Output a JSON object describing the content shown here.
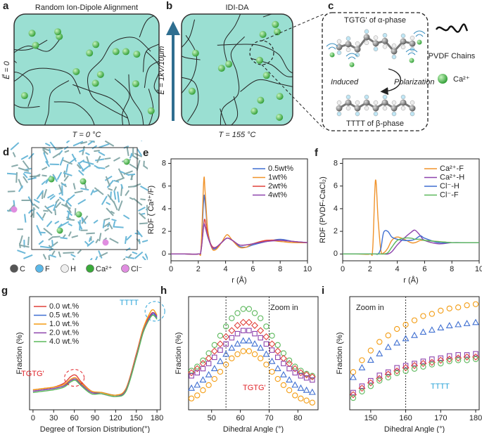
{
  "panels": {
    "a": {
      "label": "a",
      "title": "Random Ion-Dipole Alignment",
      "temperature": "T = 0 °C",
      "field": "E⃗ = 0"
    },
    "b": {
      "label": "b",
      "title": "IDI-DA",
      "temperature": "T = 155 °C",
      "field": "E⃗ = 1kV/10μm"
    },
    "c": {
      "label": "c",
      "top": "TGTG' of α-phase",
      "induced": "Induced",
      "polarization": "Polarization",
      "bottom": "TTTT of β-phase",
      "chains": "PVDF Chains",
      "ion": "Ca²⁺"
    },
    "d": {
      "label": "d",
      "legend": [
        "C",
        "F",
        "H",
        "Ca²⁺",
        "Cl⁻"
      ]
    }
  },
  "chart_data": [
    {
      "type": "line",
      "panel": "e",
      "xlabel": "r (Å)",
      "ylabel": "RDF ( Ca²⁺/F)",
      "legend": "upper right",
      "x": [
        0,
        1,
        2,
        2.2,
        2.4,
        2.5,
        2.7,
        3,
        3.3,
        3.7,
        4.1,
        4.5,
        5,
        5.5,
        6,
        7,
        8,
        9,
        10
      ],
      "series": [
        {
          "name": "0.5wt%",
          "color": "#3f6fd1",
          "values": [
            0,
            0,
            0,
            0.4,
            4.9,
            4.5,
            2,
            0.6,
            0.5,
            1.0,
            1.4,
            1.2,
            0.7,
            0.6,
            0.8,
            1.1,
            1.3,
            1.1,
            1.0
          ]
        },
        {
          "name": "1wt%",
          "color": "#f0932b",
          "values": [
            0,
            0,
            0,
            0.5,
            6.5,
            5.5,
            2,
            0.5,
            0.4,
            1.0,
            1.7,
            1.2,
            0.6,
            0.6,
            0.9,
            1.2,
            1.1,
            1.0,
            1.0
          ]
        },
        {
          "name": "2wt%",
          "color": "#e0413a",
          "values": [
            0,
            0,
            0,
            0.3,
            2.6,
            3.0,
            1.6,
            0.7,
            0.6,
            1.0,
            1.4,
            1.2,
            0.8,
            0.8,
            0.9,
            1.2,
            1.2,
            1.1,
            1.0
          ]
        },
        {
          "name": "4wt%",
          "color": "#8e44ad",
          "values": [
            0,
            0,
            0,
            0.3,
            2.5,
            2.4,
            1.5,
            0.6,
            0.6,
            1.0,
            1.4,
            1.2,
            0.8,
            0.8,
            0.9,
            1.1,
            1.2,
            1.1,
            1.0
          ]
        }
      ],
      "xlim": [
        0,
        10
      ],
      "xticks": [
        0,
        2,
        4,
        6,
        8,
        10
      ],
      "ylim": [
        -0.6,
        8.4
      ],
      "yticks": [
        0,
        2,
        4,
        6,
        8
      ]
    },
    {
      "type": "line",
      "panel": "f",
      "xlabel": "r (Å)",
      "ylabel": "RDF (PVDF-CaCl₂)",
      "legend": "upper right",
      "x": [
        0,
        1,
        2,
        2.2,
        2.4,
        2.6,
        2.8,
        3,
        3.3,
        3.6,
        4,
        4.5,
        5,
        5.3,
        5.7,
        6,
        7,
        8,
        9,
        10
      ],
      "series": [
        {
          "name": "Ca²⁺-F",
          "color": "#f0932b",
          "values": [
            0,
            0,
            0,
            0.5,
            6.5,
            3,
            0.3,
            0.1,
            0.5,
            1.2,
            1.5,
            1.3,
            1.0,
            1.0,
            1.2,
            1.2,
            1.1,
            1.0,
            1.0,
            1.0
          ]
        },
        {
          "name": "Ca²⁺-H",
          "color": "#8e44ad",
          "values": [
            0,
            0,
            0,
            0,
            0,
            0,
            0,
            0,
            0,
            0.2,
            0.8,
            1.4,
            1.9,
            2.1,
            1.6,
            1.2,
            0.9,
            1.0,
            1.0,
            1.0
          ]
        },
        {
          "name": "Cl⁻-H",
          "color": "#3f6fd1",
          "values": [
            0,
            0,
            0,
            0,
            0,
            0,
            0.5,
            1.9,
            2.0,
            1.5,
            1.3,
            1.2,
            1.2,
            1.3,
            1.6,
            1.4,
            1.0,
            1.0,
            1.0,
            1.0
          ]
        },
        {
          "name": "Cl⁻-F",
          "color": "#5cb85c",
          "values": [
            0,
            0,
            0,
            0,
            0,
            0,
            0,
            0,
            0.1,
            0.6,
            1.2,
            1.4,
            1.4,
            1.3,
            1.3,
            1.2,
            1.1,
            1.0,
            1.0,
            1.0
          ]
        }
      ],
      "xlim": [
        0,
        10
      ],
      "xticks": [
        0,
        2,
        4,
        6,
        8,
        10
      ],
      "ylim": [
        -0.6,
        8.4
      ],
      "yticks": [
        0,
        2,
        4,
        6,
        8
      ]
    },
    {
      "type": "line",
      "panel": "g",
      "xlabel": "Degree of Torsion Distribution(°)",
      "ylabel": "Fraction (%)",
      "legend": "upper left",
      "x": [
        0,
        15,
        30,
        45,
        55,
        62,
        70,
        85,
        100,
        120,
        135,
        150,
        160,
        170,
        175,
        180
      ],
      "series": [
        {
          "name": "0.0 wt.%",
          "color": "#e0413a",
          "values": [
            30,
            31,
            32,
            35,
            40,
            41,
            36,
            29,
            28,
            26,
            31,
            57,
            76,
            86,
            88,
            85
          ]
        },
        {
          "name": "0.5 wt.%",
          "color": "#3f6fd1",
          "values": [
            29,
            30,
            31,
            33,
            37,
            38,
            34,
            28,
            28,
            26,
            30,
            55,
            74,
            84,
            87,
            84
          ]
        },
        {
          "name": "1.0 wt.%",
          "color": "#f39c12",
          "values": [
            30,
            31,
            32,
            34,
            38,
            39,
            35,
            29,
            28,
            26,
            31,
            56,
            76,
            88,
            90,
            86
          ]
        },
        {
          "name": "2.0 wt.%",
          "color": "#8e44ad",
          "values": [
            29,
            30,
            31,
            33,
            37,
            38,
            34,
            28,
            27,
            25,
            30,
            55,
            74,
            85,
            88,
            85
          ]
        },
        {
          "name": "4.0 wt.%",
          "color": "#5cb85c",
          "values": [
            28,
            29,
            30,
            32,
            36,
            37,
            33,
            27,
            27,
            25,
            29,
            54,
            73,
            84,
            86,
            83
          ]
        }
      ],
      "annotations": [
        {
          "text": "TGTG'",
          "color": "#e0242a"
        },
        {
          "text": "TTTT",
          "color": "#2aa3d8"
        }
      ],
      "xlim": [
        -5,
        185
      ],
      "xticks": [
        0,
        30,
        60,
        90,
        120,
        150,
        180
      ],
      "ylim": [
        15,
        100
      ]
    },
    {
      "type": "scatter",
      "panel": "h",
      "xlabel": "Dihedral Angle (°)",
      "ylabel": "Fraction (%)",
      "x": [
        43,
        45,
        47,
        49,
        51,
        53,
        55,
        57,
        59,
        61,
        63,
        65,
        67,
        69,
        71,
        73,
        75,
        77,
        79,
        81,
        83,
        85
      ],
      "series": [
        {
          "color": "#5cb85c",
          "marker": "circle",
          "values": [
            33,
            37,
            43,
            50,
            58,
            67,
            76,
            84,
            89,
            93,
            93,
            89,
            84,
            76,
            67,
            58,
            50,
            43,
            37,
            33,
            30,
            28
          ]
        },
        {
          "color": "#e0413a",
          "marker": "diamond",
          "values": [
            31,
            35,
            40,
            45,
            52,
            59,
            66,
            72,
            77,
            80,
            80,
            77,
            72,
            66,
            59,
            52,
            45,
            40,
            35,
            31,
            29,
            27
          ]
        },
        {
          "color": "#8e44ad",
          "marker": "square",
          "values": [
            28,
            31,
            35,
            40,
            46,
            53,
            59,
            65,
            69,
            72,
            72,
            69,
            65,
            59,
            53,
            46,
            40,
            35,
            31,
            28,
            26,
            24
          ]
        },
        {
          "color": "#3f6fd1",
          "marker": "triangle",
          "values": [
            16,
            19,
            24,
            29,
            35,
            42,
            49,
            55,
            59,
            62,
            62,
            59,
            55,
            49,
            42,
            35,
            29,
            24,
            19,
            16,
            14,
            12
          ]
        },
        {
          "color": "#f39c12",
          "marker": "circle",
          "values": [
            6,
            9,
            14,
            19,
            25,
            32,
            39,
            45,
            49,
            52,
            52,
            49,
            45,
            39,
            32,
            25,
            19,
            14,
            9,
            6,
            4,
            2
          ]
        }
      ],
      "vlines": [
        55,
        70
      ],
      "annotations": [
        {
          "text": "Zoom in",
          "color": "#222222"
        },
        {
          "text": "TGTG'",
          "color": "#e0242a"
        }
      ],
      "xlim": [
        42,
        87
      ],
      "xticks": [
        50,
        60,
        70,
        80
      ],
      "ylim": [
        -5,
        105
      ]
    },
    {
      "type": "scatter",
      "panel": "i",
      "xlabel": "Dihedral Angle (°)",
      "ylabel": "Fraction (%)",
      "x": [
        145,
        147.5,
        150,
        152.5,
        155,
        157.5,
        160,
        162.5,
        165,
        167.5,
        170,
        172.5,
        175,
        177.5,
        180
      ],
      "series": [
        {
          "color": "#f39c12",
          "marker": "circle",
          "values": [
            35,
            46,
            55,
            63,
            69,
            75,
            79,
            83,
            87,
            89,
            92,
            94,
            95,
            97,
            98
          ]
        },
        {
          "color": "#3f6fd1",
          "marker": "triangle",
          "values": [
            30,
            39,
            46,
            52,
            58,
            62,
            66,
            69,
            72,
            74,
            76,
            78,
            79,
            80,
            81
          ]
        },
        {
          "color": "#8e44ad",
          "marker": "square",
          "values": [
            16,
            22,
            27,
            32,
            35,
            39,
            41,
            43,
            45,
            47,
            48,
            50,
            51,
            51,
            52
          ]
        },
        {
          "color": "#e0413a",
          "marker": "diamond",
          "values": [
            14,
            20,
            25,
            29,
            33,
            36,
            39,
            41,
            43,
            44,
            46,
            47,
            48,
            49,
            49
          ]
        },
        {
          "color": "#5cb85c",
          "marker": "circle",
          "values": [
            11,
            17,
            22,
            27,
            30,
            34,
            36,
            38,
            40,
            42,
            43,
            45,
            46,
            46,
            47
          ]
        }
      ],
      "vlines": [
        160
      ],
      "annotations": [
        {
          "text": "Zoom in",
          "color": "#222222"
        },
        {
          "text": "TTTT",
          "color": "#2aa3d8"
        }
      ],
      "xlim": [
        144,
        181
      ],
      "xticks": [
        150,
        160,
        170,
        180
      ],
      "ylim": [
        0,
        105
      ]
    }
  ]
}
